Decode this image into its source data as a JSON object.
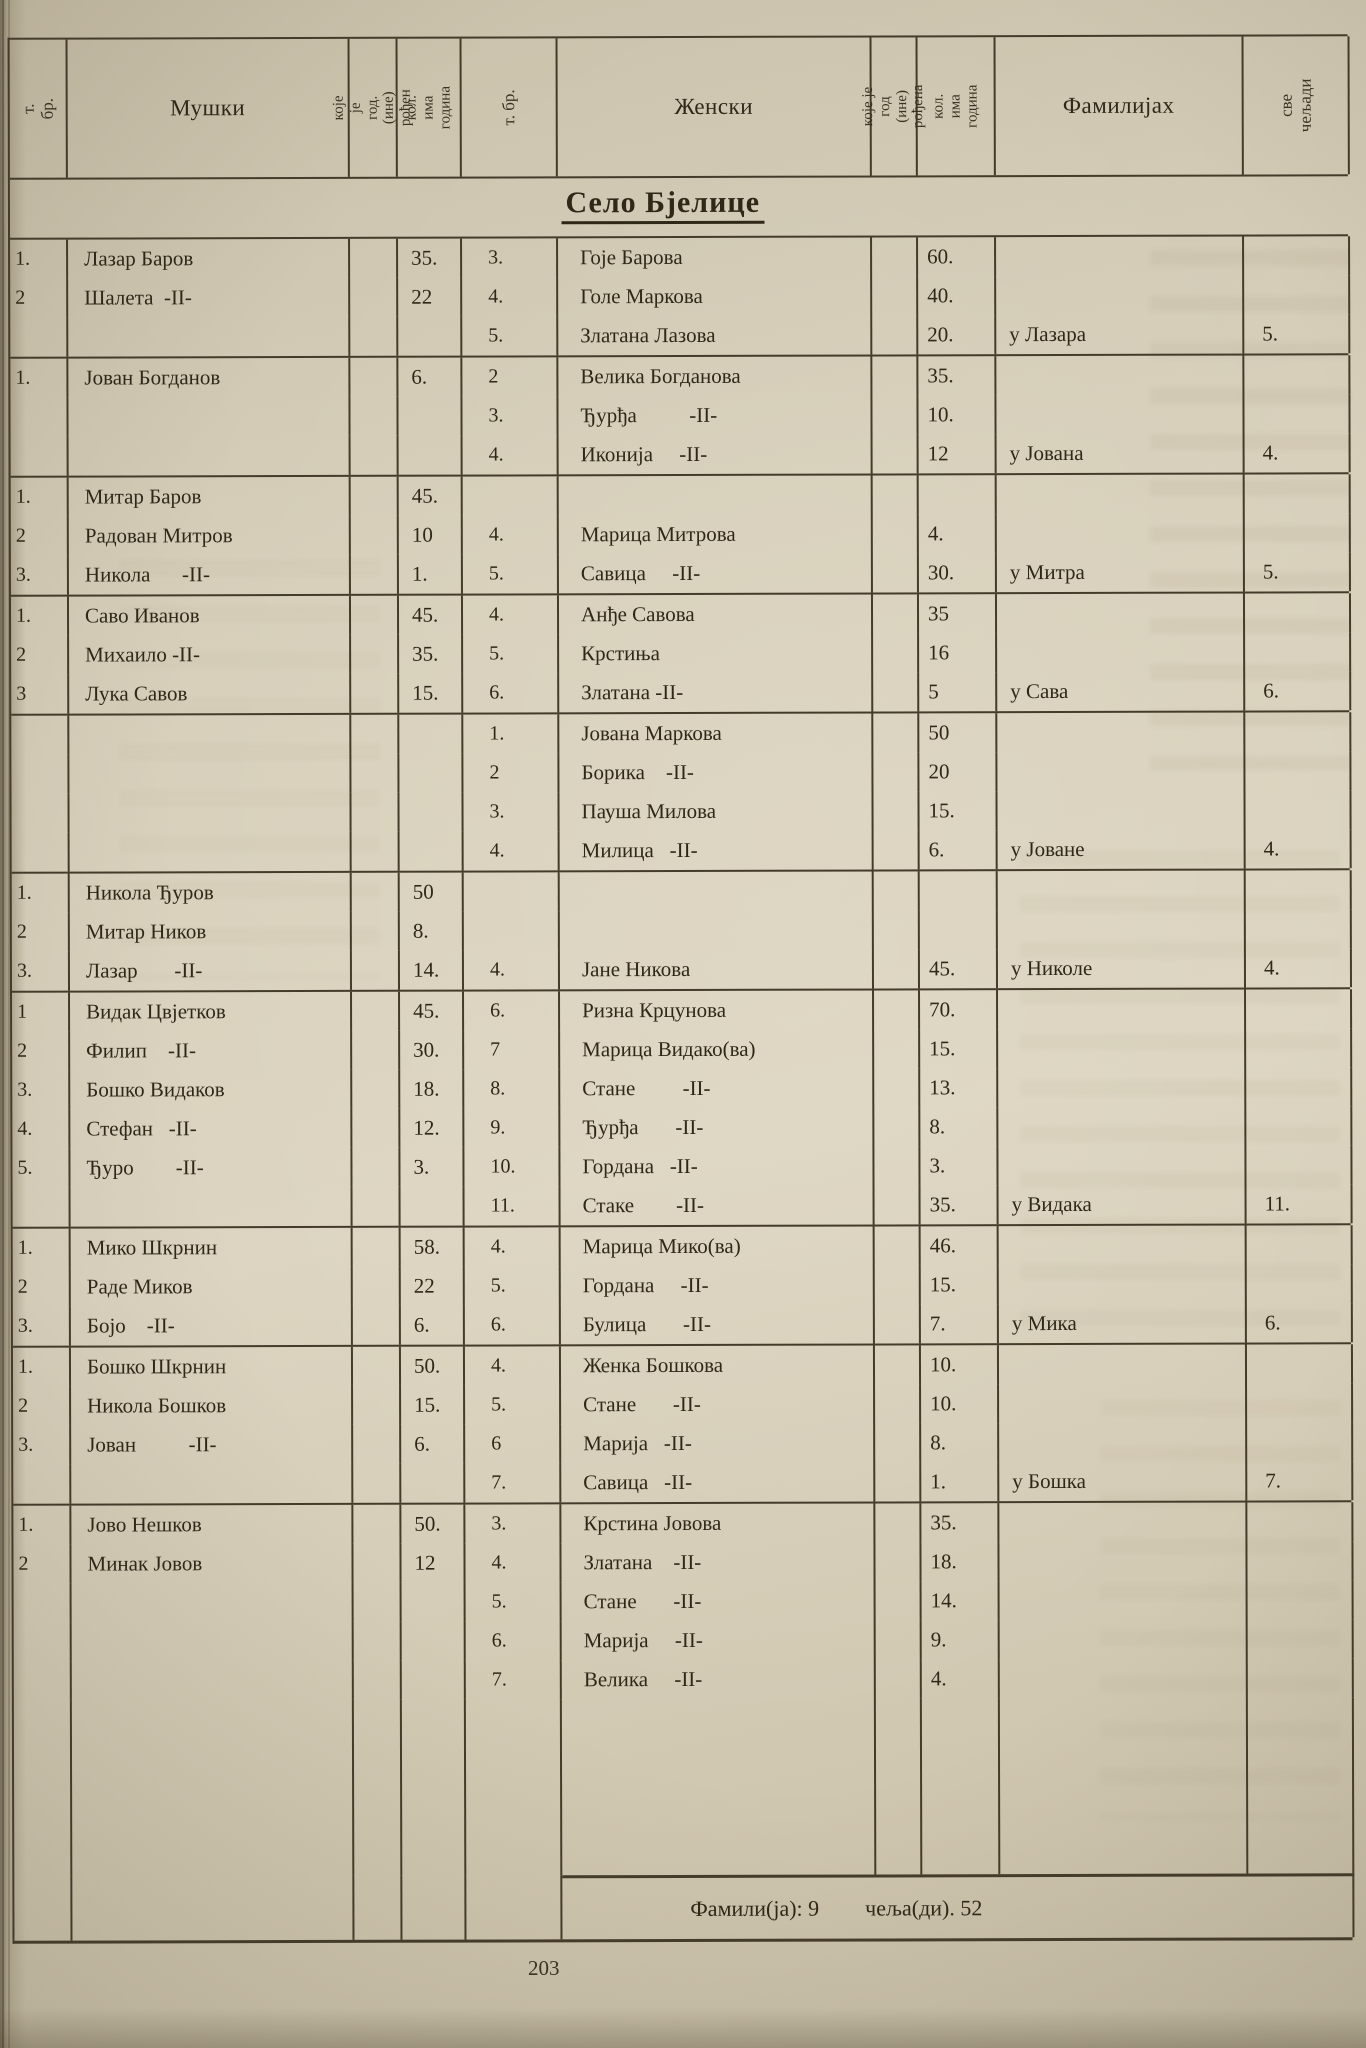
{
  "page": {
    "village_title": "Село Бјелице",
    "page_number": "203",
    "summary_families": "Фамили(ја): 9",
    "summary_members": "чеља(ди). 52"
  },
  "header": {
    "tbr_male": "т. бр.",
    "males": "Мушки",
    "born_male": "које је год.\n(ине) рођен",
    "age_male": "кол. има\nгодина",
    "tbr_female": "т. бр.",
    "females": "Женски",
    "born_female": "које је год\n(ине) рођена",
    "age_female": "кол. има\nгодина",
    "families": "Фамилијах",
    "all_members": "све\nчељади"
  },
  "blocks": [
    {
      "rows": [
        {
          "mn": "1.",
          "mname": "Лазар Баров",
          "mage": "35.",
          "fn": "3.",
          "fname": "Гоје Барова",
          "fage": "60."
        },
        {
          "mn": "2",
          "mname": "Шалета  -II-",
          "mage": "22",
          "fn": "4.",
          "fname": "Голе Маркова",
          "fage": "40."
        },
        {
          "fn": "5.",
          "fname": "Златана Лазова",
          "fage": "20.",
          "fam": "у Лазара",
          "tot": "5."
        }
      ]
    },
    {
      "rows": [
        {
          "mn": "1.",
          "mname": "Јован Богданов",
          "mage": "6.",
          "fn": "2",
          "fname": "Велика Богданова",
          "fage": "35."
        },
        {
          "fn": "3.",
          "fname": "Ђурђа          -II-",
          "fage": "10."
        },
        {
          "fn": "4.",
          "fname": "Иконија     -II-",
          "fage": "12",
          "fam": "у Јована",
          "tot": "4."
        }
      ]
    },
    {
      "rows": [
        {
          "mn": "1.",
          "mname": "Митар Баров",
          "mage": "45."
        },
        {
          "mn": "2",
          "mname": "Радован Митров",
          "mage": "10",
          "fn": "4.",
          "fname": "Марица Митрова",
          "fage": "4."
        },
        {
          "mn": "3.",
          "mname": "Никола      -II-",
          "mage": "1.",
          "fn": "5.",
          "fname": "Савица     -II-",
          "fage": "30.",
          "fam": "у Митра",
          "tot": "5."
        }
      ]
    },
    {
      "rows": [
        {
          "mn": "1.",
          "mname": "Саво Иванов",
          "mage": "45.",
          "fn": "4.",
          "fname": "Анђе Савова",
          "fage": "35"
        },
        {
          "mn": "2",
          "mname": "Михаило -II-",
          "mage": "35.",
          "fn": "5.",
          "fname": "Крстиња",
          "fage": "16"
        },
        {
          "mn": "3",
          "mname": "Лука Савов",
          "mage": "15.",
          "fn": "6.",
          "fname": "Златана -II-",
          "fage": "5",
          "fam": "у Сава",
          "tot": "6."
        }
      ]
    },
    {
      "rows": [
        {
          "fn": "1.",
          "fname": "Јована Маркова",
          "fage": "50"
        },
        {
          "fn": "2",
          "fname": "Борика    -II-",
          "fage": "20"
        },
        {
          "fn": "3.",
          "fname": "Пауша Милова",
          "fage": "15."
        },
        {
          "fn": "4.",
          "fname": "Милица   -II-",
          "fage": "6.",
          "fam": "у Јоване",
          "tot": "4."
        }
      ]
    },
    {
      "rows": [
        {
          "mn": "1.",
          "mname": "Никола Ђуров",
          "mage": "50"
        },
        {
          "mn": "2",
          "mname": "Митар Ников",
          "mage": "8."
        },
        {
          "mn": "3.",
          "mname": "Лазар       -II-",
          "mage": "14.",
          "fn": "4.",
          "fname": "Јане Никова",
          "fage": "45.",
          "fam": "у Николе",
          "tot": "4."
        }
      ]
    },
    {
      "rows": [
        {
          "mn": "1",
          "mname": "Видак Цвјетков",
          "mage": "45.",
          "fn": "6.",
          "fname": "Ризна Крцунова",
          "fage": "70."
        },
        {
          "mn": "2",
          "mname": "Филип    -II-",
          "mage": "30.",
          "fn": "7",
          "fname": "Марица Видако(ва)",
          "fage": "15."
        },
        {
          "mn": "3.",
          "mname": "Бошко Видаков",
          "mage": "18.",
          "fn": "8.",
          "fname": "Стане         -II-",
          "fage": "13."
        },
        {
          "mn": "4.",
          "mname": "Стефан   -II-",
          "mage": "12.",
          "fn": "9.",
          "fname": "Ђурђа       -II-",
          "fage": "8."
        },
        {
          "mn": "5.",
          "mname": "Ђуро        -II-",
          "mage": "3.",
          "fn": "10.",
          "fname": "Гордана   -II-",
          "fage": "3."
        },
        {
          "fn": "11.",
          "fname": "Стаке        -II-",
          "fage": "35.",
          "fam": "у Видака",
          "tot": "11."
        }
      ]
    },
    {
      "rows": [
        {
          "mn": "1.",
          "mname": "Мико Шкрнин",
          "mage": "58.",
          "fn": "4.",
          "fname": "Марица Мико(ва)",
          "fage": "46."
        },
        {
          "mn": "2",
          "mname": "Раде Миков",
          "mage": "22",
          "fn": "5.",
          "fname": "Гордана     -II-",
          "fage": "15."
        },
        {
          "mn": "3.",
          "mname": "Бојо    -II-",
          "mage": "6.",
          "fn": "6.",
          "fname": "Булица       -II-",
          "fage": "7.",
          "fam": "у Мика",
          "tot": "6."
        }
      ]
    },
    {
      "rows": [
        {
          "mn": "1.",
          "mname": "Бошко Шкрнин",
          "mage": "50.",
          "fn": "4.",
          "fname": "Женка Бошкова",
          "fage": "10."
        },
        {
          "mn": "2",
          "mname": "Никола Бошков",
          "mage": "15.",
          "fn": "5.",
          "fname": "Стане       -II-",
          "fage": "10."
        },
        {
          "mn": "3.",
          "mname": "Јован          -II-",
          "mage": "6.",
          "fn": "6",
          "fname": "Марија   -II-",
          "fage": "8."
        },
        {
          "fn": "7.",
          "fname": "Савица   -II-",
          "fage": "1.",
          "fam": "у Бошка",
          "tot": "7."
        }
      ]
    },
    {
      "rows": [
        {
          "mn": "1.",
          "mname": "Јово Нешков",
          "mage": "50.",
          "fn": "3.",
          "fname": "Крстина Јовова",
          "fage": "35."
        },
        {
          "mn": "2",
          "mname": "Минак Јовов",
          "mage": "12",
          "fn": "4.",
          "fname": "Златана    -II-",
          "fage": "18."
        },
        {
          "fn": "5.",
          "fname": "Стане       -II-",
          "fage": "14."
        },
        {
          "fn": "6.",
          "fname": "Марија     -II-",
          "fage": "9."
        },
        {
          "fn": "7.",
          "fname": "Велика     -II-",
          "fage": "4."
        }
      ]
    }
  ]
}
